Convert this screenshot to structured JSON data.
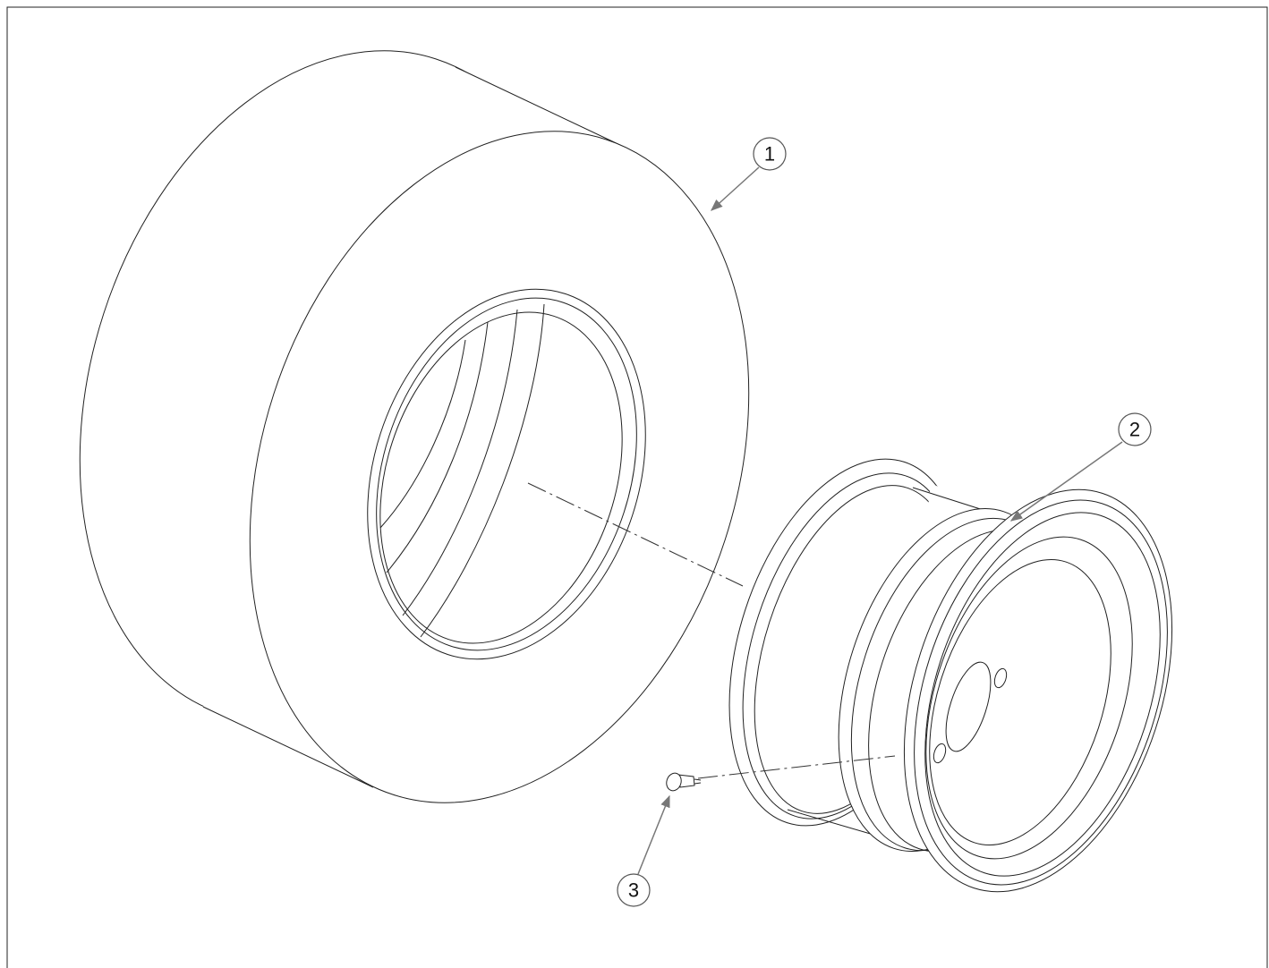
{
  "callouts": [
    {
      "label": "1"
    },
    {
      "label": "2"
    },
    {
      "label": "3"
    }
  ]
}
